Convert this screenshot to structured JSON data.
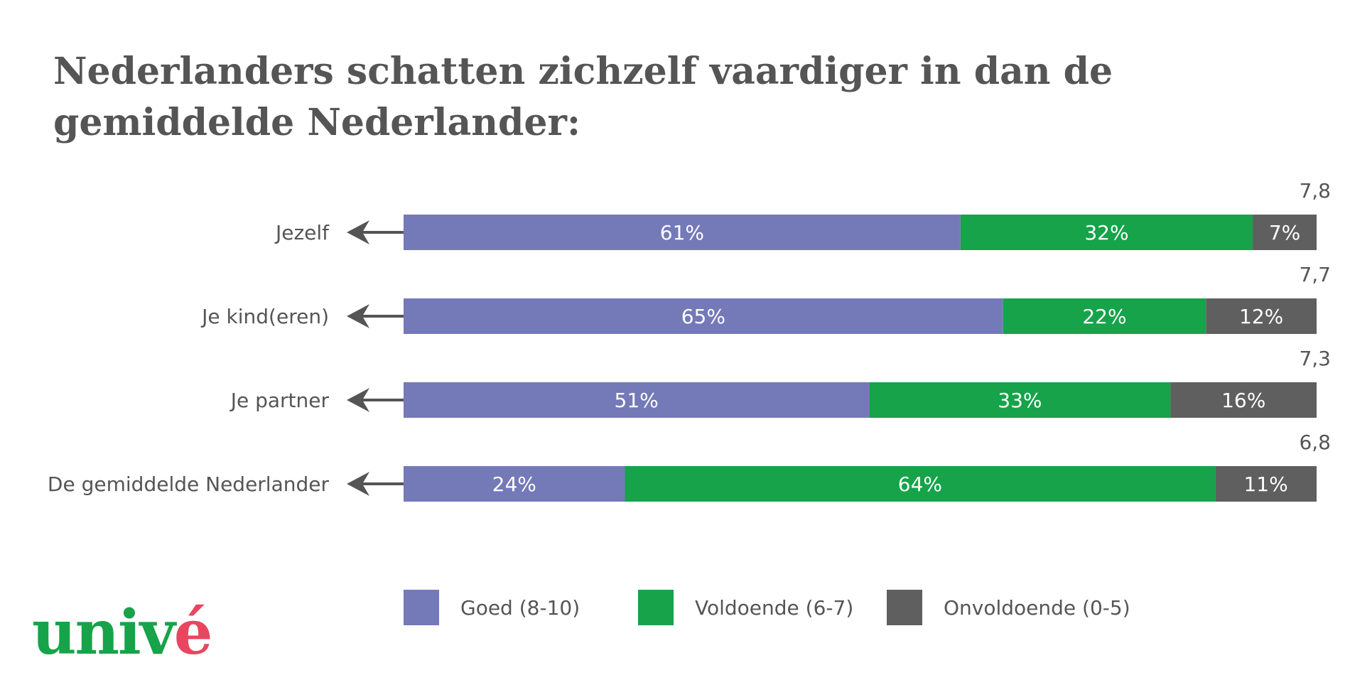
{
  "title": "Nederlanders schatten zichzelf vaardiger in dan de gemiddelde Nederlander:",
  "colors": {
    "goed": "#7479b8",
    "voldoende": "#16a34a",
    "onvoldoende": "#5f5f5f",
    "text": "#555555",
    "logo_green": "#16a34a",
    "logo_accent": "#e8465f"
  },
  "chart_data": {
    "type": "bar",
    "orientation": "horizontal",
    "stacked": true,
    "title": "Nederlanders schatten zichzelf vaardiger in dan de gemiddelde Nederlander:",
    "categories": [
      "Jezelf",
      "Je kind(eren)",
      "Je partner",
      "De gemiddelde Nederlander"
    ],
    "series": [
      {
        "name": "Goed (8-10)",
        "key": "goed",
        "values": [
          61,
          65,
          51,
          24
        ],
        "labels": [
          "61%",
          "65%",
          "51%",
          "24%"
        ]
      },
      {
        "name": "Voldoende (6-7)",
        "key": "voldoende",
        "values": [
          32,
          22,
          33,
          64
        ],
        "labels": [
          "32%",
          "22%",
          "33%",
          "64%"
        ]
      },
      {
        "name": "Onvoldoende (0-5)",
        "key": "onvoldoende",
        "values": [
          7,
          12,
          16,
          11
        ],
        "labels": [
          "7%",
          "12%",
          "16%",
          "11%"
        ]
      }
    ],
    "averages": [
      "7,8",
      "7,7",
      "7,3",
      "6,8"
    ],
    "xlim": [
      0,
      100
    ],
    "legend": "bottom"
  },
  "legend": [
    {
      "label": "Goed (8-10)",
      "key": "goed"
    },
    {
      "label": "Voldoende (6-7)",
      "key": "voldoende"
    },
    {
      "label": "Onvoldoende (0-5)",
      "key": "onvoldoende"
    }
  ],
  "logo": {
    "text_main": "univ",
    "text_accent": "é"
  }
}
